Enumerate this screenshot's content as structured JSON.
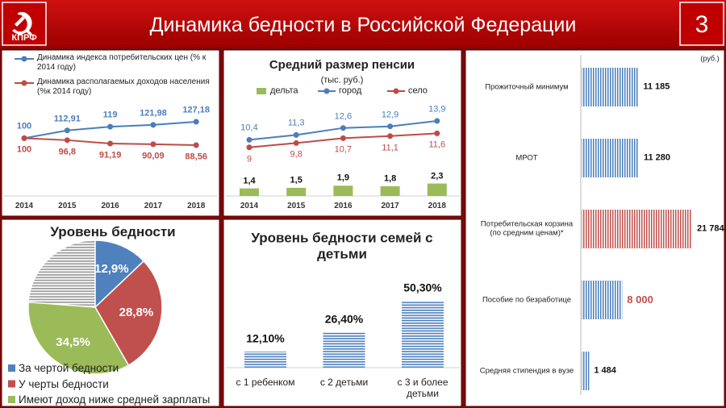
{
  "header": {
    "logo": "КПРФ",
    "title": "Динамика бедности в Российской Федерации",
    "page_number": "3"
  },
  "chart_data": [
    {
      "type": "line",
      "categories": [
        "2014",
        "2015",
        "2016",
        "2017",
        "2018"
      ],
      "series": [
        {
          "name": "Динамика индекса потребительских цен (% к 2014 году)",
          "color": "#4a7ebb",
          "values": [
            100,
            112.91,
            119,
            121.98,
            127.18
          ],
          "value_labels": [
            "100",
            "112,91",
            "119",
            "121,98",
            "127,18"
          ]
        },
        {
          "name": "Динамика располагаемых доходов населения (%к 2014 году)",
          "color": "#be4b48",
          "values": [
            100,
            96.8,
            91.19,
            90.09,
            88.56
          ],
          "value_labels": [
            "100",
            "96,8",
            "91,19",
            "90,09",
            "88,56"
          ]
        }
      ]
    },
    {
      "type": "combo",
      "title": "Средний размер пенсии",
      "subtitle": "(тыс. руб.)",
      "categories": [
        "2014",
        "2015",
        "2016",
        "2017",
        "2018"
      ],
      "series": [
        {
          "name": "дельта",
          "type": "bar",
          "color": "#9bbb59",
          "values": [
            1.4,
            1.5,
            1.9,
            1.8,
            2.3
          ],
          "value_labels": [
            "1,4",
            "1,5",
            "1,9",
            "1,8",
            "2,3"
          ]
        },
        {
          "name": "город",
          "type": "line",
          "color": "#4a7ebb",
          "values": [
            10.4,
            11.3,
            12.6,
            12.9,
            13.9
          ],
          "value_labels": [
            "10,4",
            "11,3",
            "12,6",
            "12,9",
            "13,9"
          ]
        },
        {
          "name": "село",
          "type": "line",
          "color": "#be4b48",
          "values": [
            9,
            9.8,
            10.7,
            11.1,
            11.6
          ],
          "value_labels": [
            "9",
            "9,8",
            "10,7",
            "11,1",
            "11,6"
          ]
        }
      ]
    },
    {
      "type": "hbar",
      "unit_label": "(руб.)",
      "categories": [
        "Прожиточный минимум",
        "МРОТ",
        "Потребительская корзина\n(по средним ценам)*",
        "Пособие по безработице",
        "Средняя стипендия в вузе"
      ],
      "values": [
        11185,
        11280,
        21784,
        8000,
        1484
      ],
      "value_labels": [
        "11 185",
        "11 280",
        "21 784",
        "8 000",
        "1 484"
      ],
      "colors": [
        "#4a7ebb",
        "#4a7ebb",
        "#c0504d",
        "#4a7ebb",
        "#4a7ebb"
      ],
      "value_label_colors": [
        "#111111",
        "#111111",
        "#111111",
        "#c0504d",
        "#111111"
      ]
    },
    {
      "type": "pie",
      "title": "Уровень бедности",
      "categories": [
        "За чертой бедности",
        "У черты бедности",
        "Имеют доход ниже средней зарплаты"
      ],
      "values": [
        12.9,
        28.8,
        34.5
      ],
      "value_labels": [
        "12,9%",
        "28,8%",
        "34,5%"
      ],
      "colors": [
        "#4f81bd",
        "#c0504d",
        "#9bbb59"
      ]
    },
    {
      "type": "bar",
      "title": "Уровень бедности семей с детьми",
      "categories": [
        "с 1 ребенком",
        "с 2 детьми",
        "с 3 и более детьми"
      ],
      "values": [
        12.1,
        26.4,
        50.3
      ],
      "value_labels": [
        "12,10%",
        "26,40%",
        "50,30%"
      ],
      "color": "#4a7ebb"
    }
  ]
}
